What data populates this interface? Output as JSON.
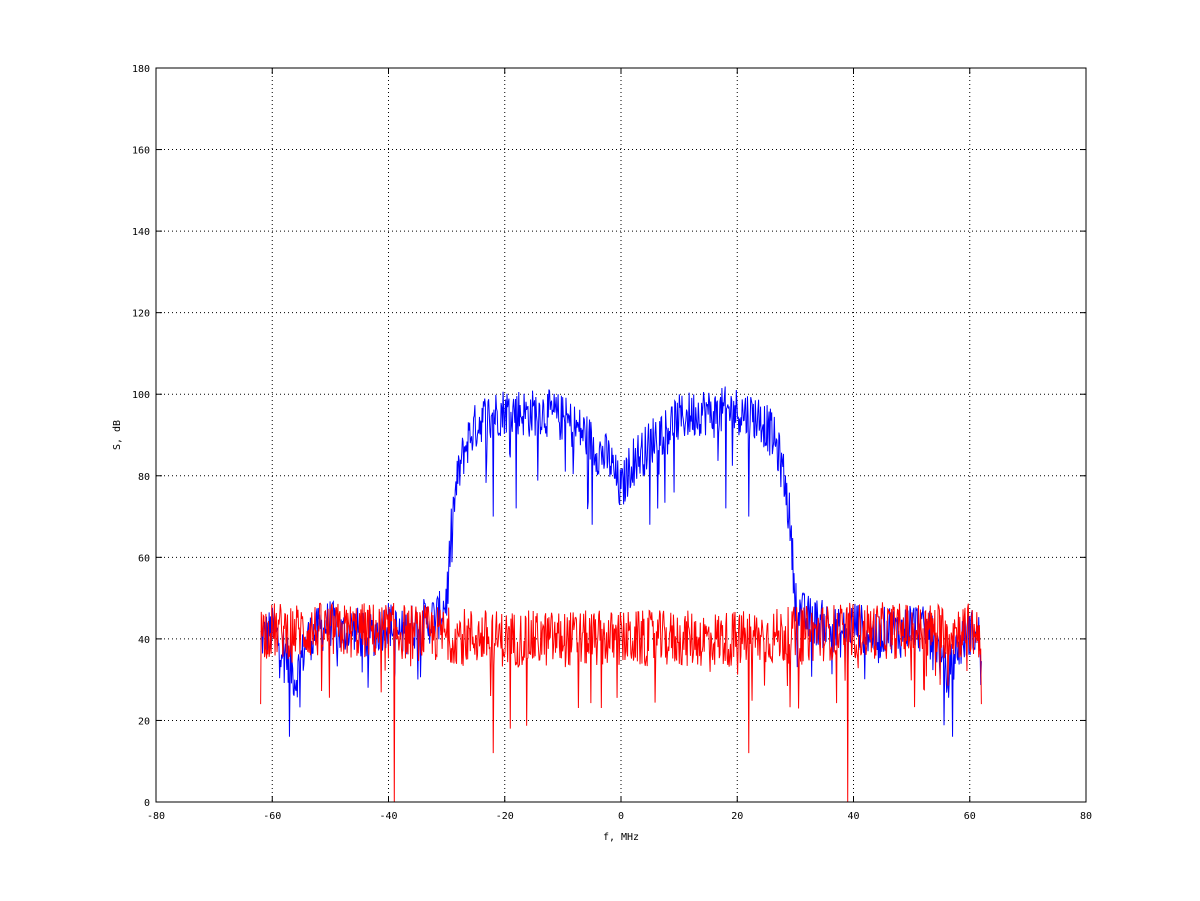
{
  "chart_data": {
    "type": "line",
    "title": "",
    "xlabel": "f, MHz",
    "ylabel": "S, dB",
    "xlim": [
      -80,
      80
    ],
    "ylim": [
      0,
      180
    ],
    "x_ticks": [
      -80,
      -60,
      -40,
      -20,
      0,
      20,
      40,
      60,
      80
    ],
    "y_ticks": [
      0,
      20,
      40,
      60,
      80,
      100,
      120,
      140,
      160,
      180
    ],
    "grid": true,
    "legend": "none",
    "series": [
      {
        "color": "#0000ff",
        "x": [
          -62,
          -60,
          -58,
          -56,
          -54,
          -52,
          -50,
          -48,
          -46,
          -44,
          -42,
          -40,
          -38,
          -36,
          -34,
          -32,
          -31,
          -30,
          -29.5,
          -29,
          -28,
          -27,
          -26,
          -25,
          -24,
          -22,
          -20,
          -18,
          -16,
          -14,
          -12,
          -10,
          -8,
          -6,
          -5,
          -4,
          -3,
          -2,
          -1,
          0,
          1,
          2,
          3,
          4,
          5,
          6,
          8,
          10,
          12,
          14,
          16,
          18,
          20,
          22,
          24,
          25,
          26,
          27,
          28,
          29,
          29.5,
          30,
          31,
          32,
          34,
          36,
          38,
          40,
          42,
          44,
          46,
          48,
          50,
          52,
          54,
          56,
          58,
          60,
          62
        ],
        "y": [
          40,
          42,
          38,
          30,
          40,
          42,
          44,
          41,
          43,
          40,
          42,
          44,
          41,
          43,
          44,
          45,
          46,
          50,
          60,
          70,
          80,
          86,
          90,
          92,
          94,
          95,
          96,
          96,
          95,
          96,
          95,
          94,
          92,
          90,
          88,
          86,
          85,
          84,
          80,
          76,
          80,
          84,
          85,
          86,
          88,
          90,
          92,
          94,
          95,
          96,
          95,
          96,
          96,
          95,
          94,
          92,
          90,
          86,
          80,
          70,
          60,
          50,
          46,
          45,
          44,
          43,
          41,
          44,
          42,
          40,
          43,
          41,
          44,
          42,
          40,
          30,
          38,
          42,
          40
        ],
        "noise_amplitude": 6,
        "dips": [
          {
            "x": -57,
            "y": 16
          },
          {
            "x": -39,
            "y": 30
          },
          {
            "x": -22,
            "y": 70
          },
          {
            "x": -18,
            "y": 72
          },
          {
            "x": -5,
            "y": 68
          },
          {
            "x": 5,
            "y": 68
          },
          {
            "x": 18,
            "y": 72
          },
          {
            "x": 22,
            "y": 70
          },
          {
            "x": 39,
            "y": 30
          },
          {
            "x": 57,
            "y": 16
          }
        ]
      },
      {
        "color": "#ff0000",
        "x": [
          -62,
          -40,
          -30,
          -20,
          -10,
          0,
          10,
          20,
          30,
          40,
          62
        ],
        "y": [
          42,
          42,
          41,
          40,
          40,
          40,
          40,
          40,
          41,
          42,
          42
        ],
        "noise_amplitude": 7,
        "dips": [
          {
            "x": -62,
            "y": 24
          },
          {
            "x": -39,
            "y": 0
          },
          {
            "x": -22,
            "y": 12
          },
          {
            "x": 22,
            "y": 12
          },
          {
            "x": 39,
            "y": 0
          },
          {
            "x": 62,
            "y": 24
          }
        ]
      }
    ]
  }
}
